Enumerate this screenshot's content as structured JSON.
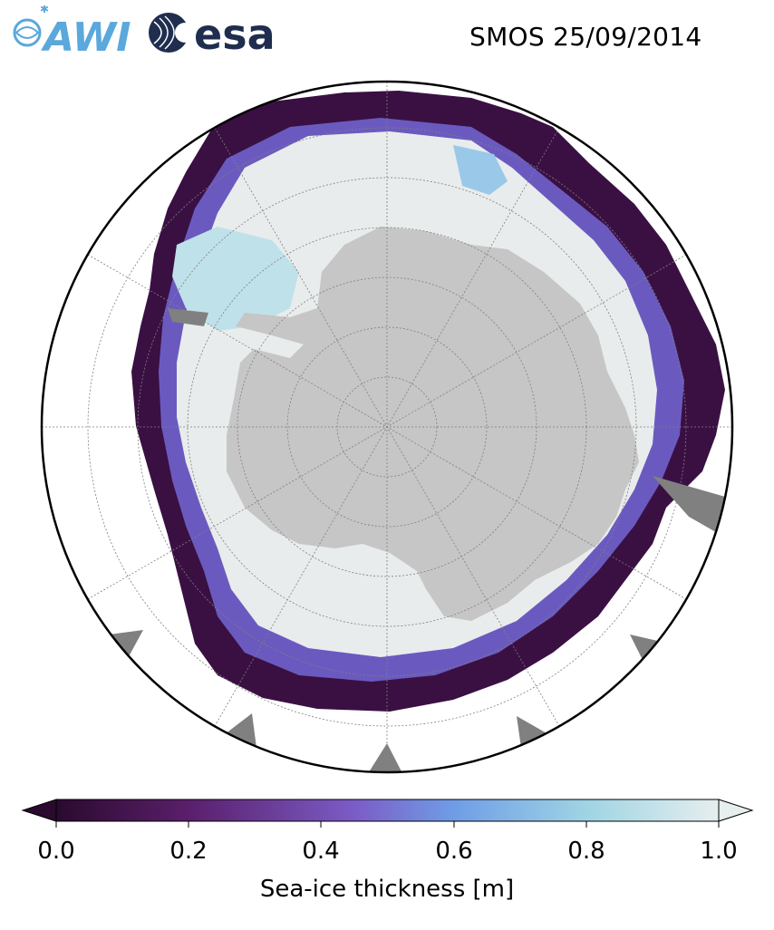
{
  "header": {
    "logo_awi_text": "AWI",
    "logo_esa_text": "esa",
    "title": "SMOS 25/09/2014"
  },
  "colorbar": {
    "label": "Sea-ice thickness [m]",
    "ticks": [
      "0.0",
      "0.2",
      "0.4",
      "0.6",
      "0.8",
      "1.0"
    ],
    "range": [
      0.0,
      1.0
    ],
    "extend": "both",
    "colormap_stops": [
      "#2a0a2e",
      "#5a1f6b",
      "#7b5cc6",
      "#6f9de6",
      "#9fd4e4",
      "#e6eeee"
    ]
  },
  "colors": {
    "ocean": "#ffffff",
    "land": "#c6c6c6",
    "ice_shelf": "#808080",
    "thick_ice": "#e9ecec",
    "thin_ice": "#3a1042",
    "grid": "#7f7f7f"
  }
}
